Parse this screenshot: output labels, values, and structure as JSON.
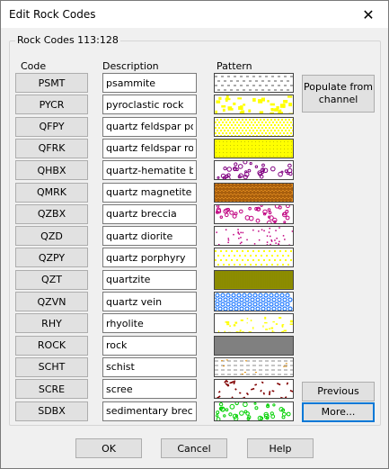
{
  "window": {
    "title": "Edit Rock Codes",
    "close_glyph": "✕"
  },
  "group": {
    "label": "Rock Codes 113:128"
  },
  "headers": {
    "code": "Code",
    "description": "Description",
    "pattern": "Pattern"
  },
  "rows": [
    {
      "code": "PSMT",
      "description": "psammite",
      "pattern": "dashes"
    },
    {
      "code": "PYCR",
      "description": "pyroclastic rock",
      "pattern": "yellow-blobs"
    },
    {
      "code": "QFPY",
      "description": "quartz feldspar porphyry",
      "pattern": "yellow-dots"
    },
    {
      "code": "QFRK",
      "description": "quartz feldspar rock",
      "pattern": "yellow-dense"
    },
    {
      "code": "QHBX",
      "description": "quartz-hematite breccia",
      "pattern": "purple-circles"
    },
    {
      "code": "QMRK",
      "description": "quartz magnetite rock",
      "pattern": "orange-hatch"
    },
    {
      "code": "QZBX",
      "description": "quartz breccia",
      "pattern": "magenta-circles"
    },
    {
      "code": "QZD",
      "description": "quartz diorite",
      "pattern": "magenta-dots"
    },
    {
      "code": "QZPY",
      "description": "quartz porphyry",
      "pattern": "yellow-sparse"
    },
    {
      "code": "QZT",
      "description": "quartzite",
      "pattern": "olive-grid"
    },
    {
      "code": "QZVN",
      "description": "quartz vein",
      "pattern": "blue-circles"
    },
    {
      "code": "RHY",
      "description": "rhyolite",
      "pattern": "yellow-speckle"
    },
    {
      "code": "ROCK",
      "description": "rock",
      "pattern": "gray-solid"
    },
    {
      "code": "SCHT",
      "description": "schist",
      "pattern": "schist-dashes"
    },
    {
      "code": "SCRE",
      "description": "scree",
      "pattern": "scree"
    },
    {
      "code": "SDBX",
      "description": "sedimentary breccia",
      "pattern": "green-circles"
    }
  ],
  "side_buttons": {
    "populate": "Populate from channel",
    "previous": "Previous",
    "more": "More..."
  },
  "bottom_buttons": {
    "ok": "OK",
    "cancel": "Cancel",
    "help": "Help"
  },
  "colors": {
    "yellow": "#ffff00",
    "purple": "#800080",
    "orange": "#e08a1e",
    "magenta": "#c00080",
    "olive": "#8a8a00",
    "blue": "#1e78ff",
    "gray": "#808080",
    "dark_red": "#800000",
    "green": "#00d000",
    "focus": "#0078d7"
  }
}
